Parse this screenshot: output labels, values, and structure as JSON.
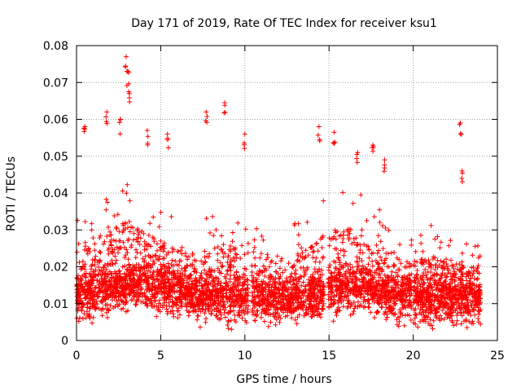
{
  "chart_data": {
    "type": "scatter",
    "title": "Day 171 of 2019, Rate Of TEC Index for receiver ksu1",
    "xlabel": "GPS time / hours",
    "ylabel": "ROTI / TECUs",
    "xlim": [
      0,
      25
    ],
    "ylim": [
      0,
      0.08
    ],
    "xticks": [
      0,
      5,
      10,
      15,
      20,
      25
    ],
    "xtick_labels": [
      "0",
      "5",
      "10",
      "15",
      "20",
      "25"
    ],
    "yticks": [
      0,
      0.01,
      0.02,
      0.03,
      0.04,
      0.05,
      0.06,
      0.07,
      0.08
    ],
    "ytick_labels": [
      "0",
      "0.01",
      "0.02",
      "0.03",
      "0.04",
      "0.05",
      "0.06",
      "0.07",
      "0.08"
    ],
    "grid": true,
    "marker": "+",
    "color": "#ff0000",
    "data_gaps_hours": [
      [
        10.2,
        10.4
      ],
      [
        14.7,
        14.95
      ],
      [
        19.9,
        20.0
      ]
    ],
    "series_envelope": {
      "name": "ROTI",
      "x": [
        0,
        1,
        2,
        3,
        4,
        5,
        6,
        7,
        8,
        9,
        10,
        11,
        12,
        13,
        14,
        15,
        16,
        17,
        18,
        19,
        20,
        21,
        22,
        23,
        24
      ],
      "baseline": [
        0.012,
        0.013,
        0.014,
        0.015,
        0.015,
        0.014,
        0.013,
        0.012,
        0.012,
        0.011,
        0.011,
        0.011,
        0.011,
        0.011,
        0.012,
        0.013,
        0.014,
        0.014,
        0.013,
        0.012,
        0.011,
        0.011,
        0.011,
        0.011,
        0.011
      ],
      "typical_max": [
        0.035,
        0.037,
        0.04,
        0.043,
        0.04,
        0.036,
        0.033,
        0.032,
        0.034,
        0.035,
        0.033,
        0.03,
        0.031,
        0.032,
        0.034,
        0.04,
        0.042,
        0.04,
        0.036,
        0.03,
        0.028,
        0.032,
        0.03,
        0.027,
        0.026
      ]
    },
    "peaks": [
      {
        "x": 0.5,
        "y": 0.058
      },
      {
        "x": 1.8,
        "y": 0.062
      },
      {
        "x": 2.6,
        "y": 0.06
      },
      {
        "x": 2.95,
        "y": 0.077
      },
      {
        "x": 3.05,
        "y": 0.073
      },
      {
        "x": 3.1,
        "y": 0.0675
      },
      {
        "x": 4.2,
        "y": 0.057
      },
      {
        "x": 5.4,
        "y": 0.056
      },
      {
        "x": 7.7,
        "y": 0.062
      },
      {
        "x": 8.8,
        "y": 0.0645
      },
      {
        "x": 10.0,
        "y": 0.056
      },
      {
        "x": 14.4,
        "y": 0.058
      },
      {
        "x": 15.3,
        "y": 0.0565
      },
      {
        "x": 16.7,
        "y": 0.051
      },
      {
        "x": 17.6,
        "y": 0.053
      },
      {
        "x": 18.3,
        "y": 0.049
      },
      {
        "x": 22.8,
        "y": 0.059
      },
      {
        "x": 22.9,
        "y": 0.046
      }
    ]
  }
}
